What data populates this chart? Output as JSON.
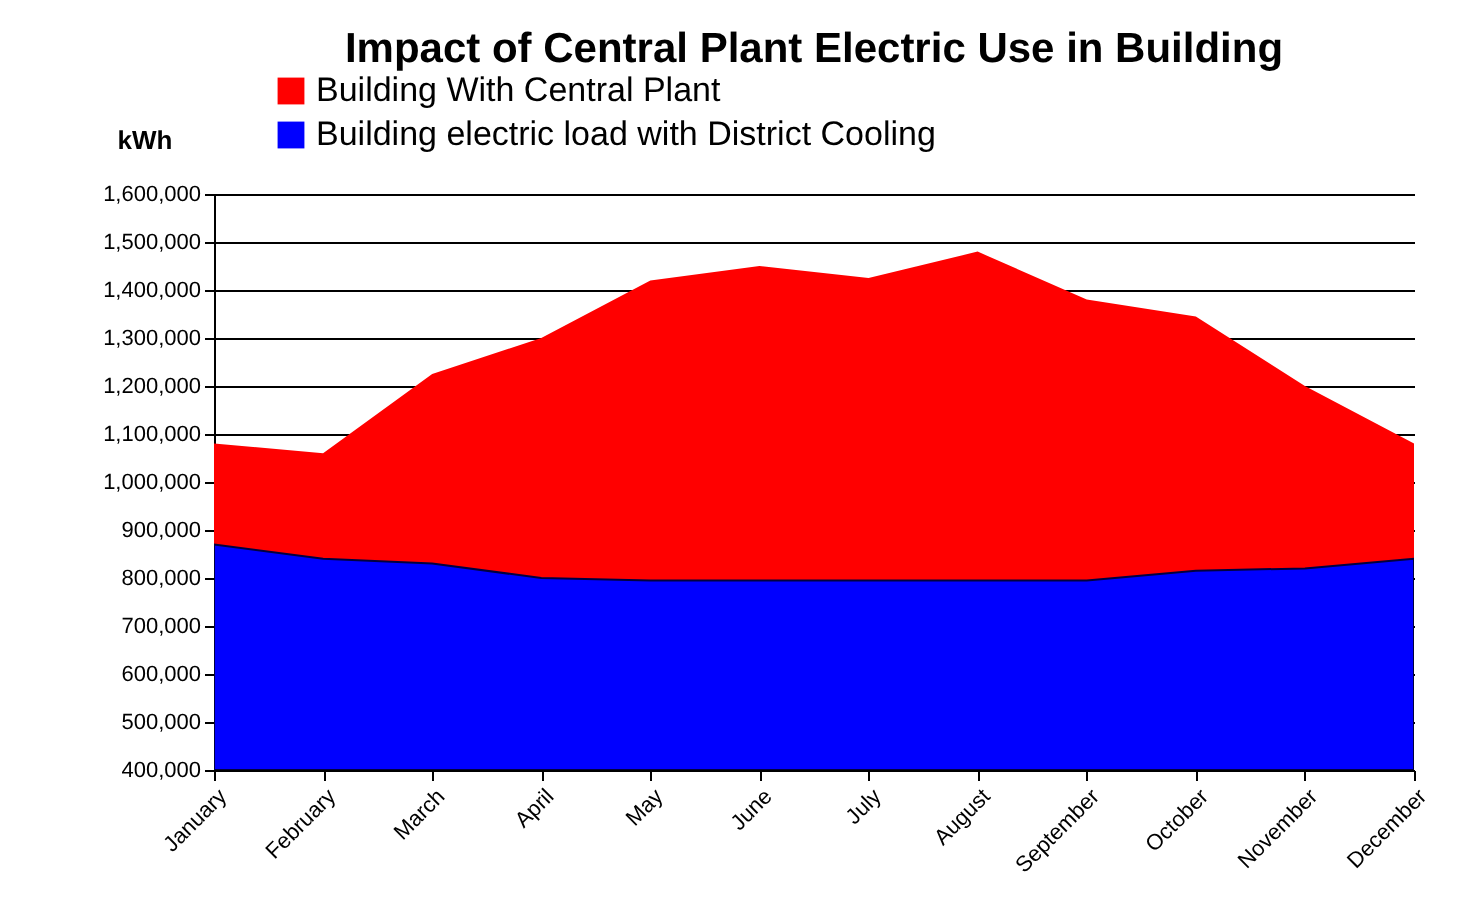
{
  "chart_data": {
    "type": "area",
    "title": "Impact of Central Plant Electric Use in Building",
    "ylabel": "kWh",
    "categories": [
      "January",
      "February",
      "March",
      "April",
      "May",
      "June",
      "July",
      "August",
      "September",
      "October",
      "November",
      "December"
    ],
    "series": [
      {
        "name": "Building With Central Plant",
        "color": "#ff0000",
        "values": [
          1080000,
          1060000,
          1225000,
          1300000,
          1420000,
          1450000,
          1425000,
          1480000,
          1380000,
          1345000,
          1200000,
          1080000
        ]
      },
      {
        "name": "Building electric load with District Cooling",
        "color": "#0000ff",
        "values": [
          870000,
          840000,
          830000,
          800000,
          795000,
          795000,
          795000,
          795000,
          795000,
          815000,
          820000,
          840000
        ]
      }
    ],
    "ylim": [
      400000,
      1600000
    ],
    "yticks": [
      {
        "value": 400000,
        "label": "400,000"
      },
      {
        "value": 500000,
        "label": "500,000"
      },
      {
        "value": 600000,
        "label": "600,000"
      },
      {
        "value": 700000,
        "label": "700,000"
      },
      {
        "value": 800000,
        "label": "800,000"
      },
      {
        "value": 900000,
        "label": "900,000"
      },
      {
        "value": 1000000,
        "label": "1,000,000"
      },
      {
        "value": 1100000,
        "label": "1,100,000"
      },
      {
        "value": 1200000,
        "label": "1,200,000"
      },
      {
        "value": 1300000,
        "label": "1,300,000"
      },
      {
        "value": 1400000,
        "label": "1,400,000"
      },
      {
        "value": 1500000,
        "label": "1,500,000"
      },
      {
        "value": 1600000,
        "label": "1,600,000"
      }
    ],
    "grid": "y",
    "legend": "top"
  }
}
